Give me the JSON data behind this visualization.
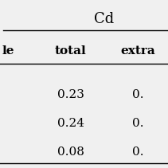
{
  "title": "Cd",
  "col1_header": "total",
  "col2_header": "extra",
  "row_prefix": "le",
  "values_col1": [
    "0.23",
    "0.24",
    "0.08"
  ],
  "values_col2": [
    "0.",
    "0.",
    "0."
  ],
  "background_color": "#f0f0f0",
  "text_color": "#000000",
  "font_size": 11
}
